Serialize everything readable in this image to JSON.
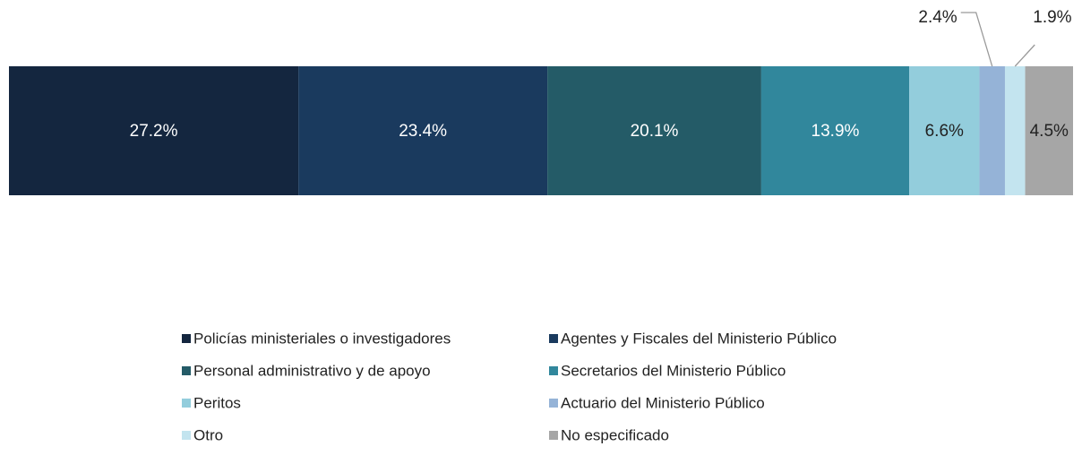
{
  "chart_data": {
    "type": "stacked-bar",
    "series": [
      {
        "name": "Policías ministeriales o investigadores",
        "color": "#14263f",
        "values": [
          27.2
        ],
        "value_labels": [
          "27.2%"
        ]
      },
      {
        "name": "Agentes y Fiscales del Ministerio Público",
        "color": "#1a3a5e",
        "values": [
          23.4
        ],
        "value_labels": [
          "23.4%"
        ]
      },
      {
        "name": "Personal administrativo y de apoyo",
        "color": "#245b67",
        "values": [
          20.1
        ],
        "value_labels": [
          "20.1%"
        ]
      },
      {
        "name": "Secretarios del Ministerio Público",
        "color": "#31879c",
        "values": [
          13.9
        ],
        "value_labels": [
          "13.9%"
        ]
      },
      {
        "name": "Peritos",
        "color": "#93cddc",
        "values": [
          6.6
        ],
        "value_labels": [
          "6.6%"
        ]
      },
      {
        "name": "Actuario del Ministerio Público",
        "color": "#95b3d7",
        "values": [
          2.4
        ],
        "value_labels": [
          "2.4%"
        ]
      },
      {
        "name": "Otro",
        "color": "#c3e4ef",
        "values": [
          1.9
        ],
        "value_labels": [
          "1.9%"
        ]
      },
      {
        "name": "No especificado",
        "color": "#a6a6a6",
        "values": [
          4.5
        ],
        "value_labels": [
          "4.5%"
        ]
      }
    ],
    "legend": "bottom"
  }
}
